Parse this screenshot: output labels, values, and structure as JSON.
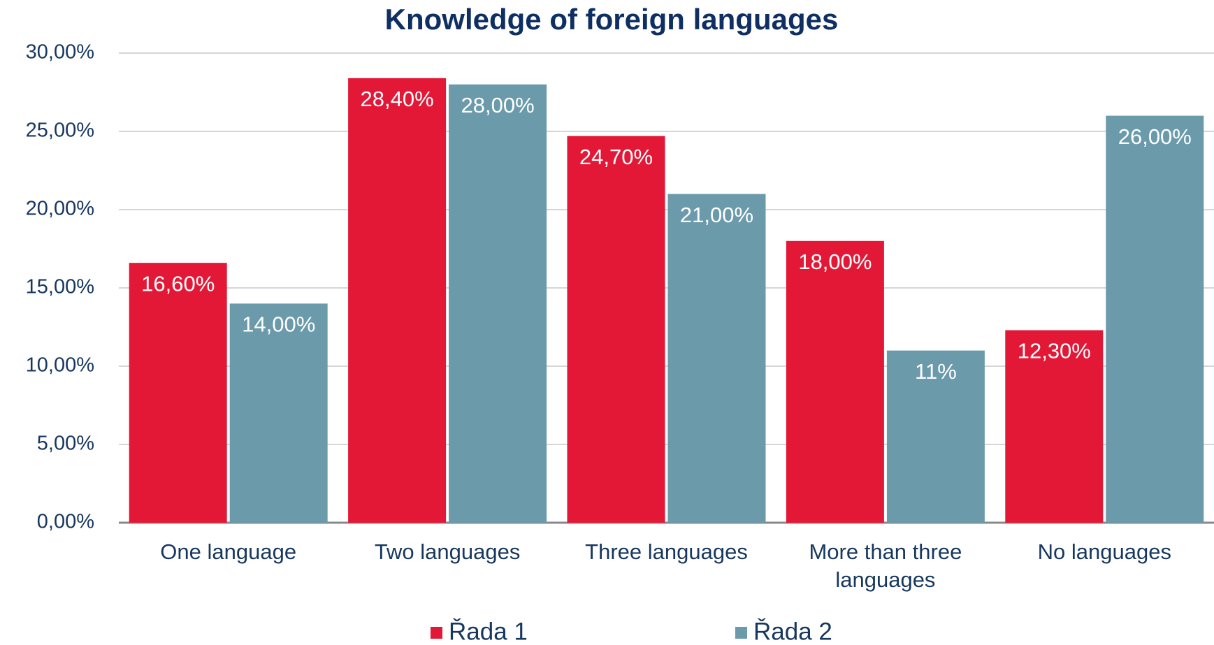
{
  "chart_data": {
    "type": "bar",
    "title": "Knowledge of foreign languages",
    "categories": [
      "One language",
      "Two languages",
      "Three languages",
      "More than three languages",
      "No languages"
    ],
    "series": [
      {
        "name": "Řada 1",
        "color": "#e31837",
        "values": [
          16.6,
          28.4,
          24.7,
          18.0,
          12.3
        ],
        "value_labels": [
          "16,60%",
          "28,40%",
          "24,70%",
          "18,00%",
          "12,30%"
        ]
      },
      {
        "name": "Řada 2",
        "color": "#6b9aab",
        "values": [
          14.0,
          28.0,
          21.0,
          11,
          26.0
        ],
        "value_labels": [
          "14,00%",
          "28,00%",
          "21,00%",
          "11%",
          "26,00%"
        ]
      }
    ],
    "ylim": [
      0,
      30
    ],
    "yticks": [
      {
        "value": 0,
        "label": "0,00%"
      },
      {
        "value": 5,
        "label": "5,00%"
      },
      {
        "value": 10,
        "label": "10,00%"
      },
      {
        "value": 15,
        "label": "15,00%"
      },
      {
        "value": 20,
        "label": "20,00%"
      },
      {
        "value": 25,
        "label": "25,00%"
      },
      {
        "value": 30,
        "label": "30,00%"
      }
    ],
    "grid": true,
    "legend": "bottom"
  }
}
